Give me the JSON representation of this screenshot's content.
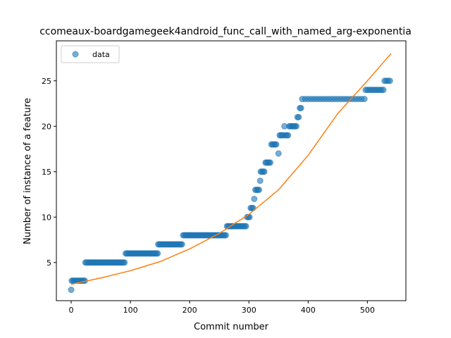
{
  "chart_data": {
    "type": "scatter",
    "title": "ccomeaux-boardgamegeek4android_func_call_with_named_arg-exponentia",
    "xlabel": "Commit number",
    "ylabel": "Number of instance of a feature",
    "xlim": [
      -25,
      565
    ],
    "ylim": [
      0.8,
      29.4
    ],
    "x_ticks": [
      0,
      100,
      200,
      300,
      400,
      500
    ],
    "y_ticks": [
      5,
      10,
      15,
      20,
      25
    ],
    "grid": false,
    "legend_position": "top-left",
    "series": [
      {
        "name": "data",
        "kind": "markers",
        "color": "#1f77b4",
        "points": [
          [
            0,
            2
          ],
          [
            1,
            3
          ],
          [
            3,
            3
          ],
          [
            5,
            3
          ],
          [
            7,
            3
          ],
          [
            9,
            3
          ],
          [
            11,
            3
          ],
          [
            13,
            3
          ],
          [
            15,
            3
          ],
          [
            17,
            3
          ],
          [
            19,
            3
          ],
          [
            21,
            3
          ],
          [
            23,
            3
          ],
          [
            24,
            5
          ],
          [
            26,
            5
          ],
          [
            28,
            5
          ],
          [
            30,
            5
          ],
          [
            32,
            5
          ],
          [
            34,
            5
          ],
          [
            36,
            5
          ],
          [
            38,
            5
          ],
          [
            40,
            5
          ],
          [
            42,
            5
          ],
          [
            44,
            5
          ],
          [
            46,
            5
          ],
          [
            48,
            5
          ],
          [
            50,
            5
          ],
          [
            52,
            5
          ],
          [
            54,
            5
          ],
          [
            56,
            5
          ],
          [
            58,
            5
          ],
          [
            60,
            5
          ],
          [
            62,
            5
          ],
          [
            64,
            5
          ],
          [
            66,
            5
          ],
          [
            68,
            5
          ],
          [
            70,
            5
          ],
          [
            72,
            5
          ],
          [
            74,
            5
          ],
          [
            76,
            5
          ],
          [
            78,
            5
          ],
          [
            80,
            5
          ],
          [
            82,
            5
          ],
          [
            84,
            5
          ],
          [
            86,
            5
          ],
          [
            88,
            5
          ],
          [
            90,
            5
          ],
          [
            92,
            6
          ],
          [
            94,
            6
          ],
          [
            96,
            6
          ],
          [
            98,
            6
          ],
          [
            100,
            6
          ],
          [
            102,
            6
          ],
          [
            104,
            6
          ],
          [
            106,
            6
          ],
          [
            108,
            6
          ],
          [
            110,
            6
          ],
          [
            112,
            6
          ],
          [
            114,
            6
          ],
          [
            116,
            6
          ],
          [
            118,
            6
          ],
          [
            120,
            6
          ],
          [
            122,
            6
          ],
          [
            124,
            6
          ],
          [
            126,
            6
          ],
          [
            128,
            6
          ],
          [
            130,
            6
          ],
          [
            132,
            6
          ],
          [
            134,
            6
          ],
          [
            136,
            6
          ],
          [
            138,
            6
          ],
          [
            140,
            6
          ],
          [
            142,
            6
          ],
          [
            144,
            6
          ],
          [
            146,
            6
          ],
          [
            147,
            7
          ],
          [
            149,
            7
          ],
          [
            151,
            7
          ],
          [
            153,
            7
          ],
          [
            155,
            7
          ],
          [
            157,
            7
          ],
          [
            159,
            7
          ],
          [
            161,
            7
          ],
          [
            163,
            7
          ],
          [
            165,
            7
          ],
          [
            167,
            7
          ],
          [
            169,
            7
          ],
          [
            171,
            7
          ],
          [
            173,
            7
          ],
          [
            175,
            7
          ],
          [
            177,
            7
          ],
          [
            179,
            7
          ],
          [
            181,
            7
          ],
          [
            183,
            7
          ],
          [
            185,
            7
          ],
          [
            187,
            7
          ],
          [
            189,
            8
          ],
          [
            191,
            8
          ],
          [
            193,
            8
          ],
          [
            195,
            8
          ],
          [
            197,
            8
          ],
          [
            199,
            8
          ],
          [
            201,
            8
          ],
          [
            203,
            8
          ],
          [
            205,
            8
          ],
          [
            207,
            8
          ],
          [
            209,
            8
          ],
          [
            211,
            8
          ],
          [
            213,
            8
          ],
          [
            215,
            8
          ],
          [
            217,
            8
          ],
          [
            219,
            8
          ],
          [
            221,
            8
          ],
          [
            223,
            8
          ],
          [
            225,
            8
          ],
          [
            227,
            8
          ],
          [
            229,
            8
          ],
          [
            231,
            8
          ],
          [
            233,
            8
          ],
          [
            235,
            8
          ],
          [
            237,
            8
          ],
          [
            239,
            8
          ],
          [
            241,
            8
          ],
          [
            243,
            8
          ],
          [
            245,
            8
          ],
          [
            247,
            8
          ],
          [
            249,
            8
          ],
          [
            251,
            8
          ],
          [
            253,
            8
          ],
          [
            255,
            8
          ],
          [
            257,
            8
          ],
          [
            259,
            8
          ],
          [
            261,
            8
          ],
          [
            263,
            9
          ],
          [
            265,
            9
          ],
          [
            267,
            9
          ],
          [
            269,
            9
          ],
          [
            271,
            9
          ],
          [
            273,
            9
          ],
          [
            275,
            9
          ],
          [
            277,
            9
          ],
          [
            279,
            9
          ],
          [
            281,
            9
          ],
          [
            283,
            9
          ],
          [
            285,
            9
          ],
          [
            287,
            9
          ],
          [
            289,
            9
          ],
          [
            291,
            9
          ],
          [
            293,
            9
          ],
          [
            295,
            9
          ],
          [
            297,
            10
          ],
          [
            299,
            10
          ],
          [
            301,
            10
          ],
          [
            303,
            11
          ],
          [
            305,
            11
          ],
          [
            307,
            11
          ],
          [
            309,
            12
          ],
          [
            311,
            13
          ],
          [
            313,
            13
          ],
          [
            315,
            13
          ],
          [
            317,
            13
          ],
          [
            319,
            14
          ],
          [
            320,
            15
          ],
          [
            322,
            15
          ],
          [
            324,
            15
          ],
          [
            326,
            15
          ],
          [
            328,
            16
          ],
          [
            330,
            16
          ],
          [
            332,
            16
          ],
          [
            334,
            16
          ],
          [
            336,
            16
          ],
          [
            338,
            18
          ],
          [
            340,
            18
          ],
          [
            342,
            18
          ],
          [
            344,
            18
          ],
          [
            346,
            18
          ],
          [
            350,
            17
          ],
          [
            352,
            19
          ],
          [
            354,
            19
          ],
          [
            356,
            19
          ],
          [
            358,
            19
          ],
          [
            360,
            20
          ],
          [
            362,
            19
          ],
          [
            364,
            19
          ],
          [
            366,
            19
          ],
          [
            368,
            20
          ],
          [
            370,
            20
          ],
          [
            372,
            20
          ],
          [
            374,
            20
          ],
          [
            376,
            20
          ],
          [
            378,
            20
          ],
          [
            380,
            20
          ],
          [
            382,
            21
          ],
          [
            384,
            21
          ],
          [
            386,
            22
          ],
          [
            388,
            22
          ],
          [
            390,
            23
          ],
          [
            395,
            23
          ],
          [
            400,
            23
          ],
          [
            405,
            23
          ],
          [
            410,
            23
          ],
          [
            415,
            23
          ],
          [
            420,
            23
          ],
          [
            425,
            23
          ],
          [
            430,
            23
          ],
          [
            435,
            23
          ],
          [
            440,
            23
          ],
          [
            445,
            23
          ],
          [
            450,
            23
          ],
          [
            455,
            23
          ],
          [
            460,
            23
          ],
          [
            465,
            23
          ],
          [
            470,
            23
          ],
          [
            475,
            23
          ],
          [
            480,
            23
          ],
          [
            485,
            23
          ],
          [
            490,
            23
          ],
          [
            495,
            23
          ],
          [
            497,
            24
          ],
          [
            500,
            24
          ],
          [
            503,
            24
          ],
          [
            506,
            24
          ],
          [
            509,
            24
          ],
          [
            512,
            24
          ],
          [
            515,
            24
          ],
          [
            518,
            24
          ],
          [
            521,
            24
          ],
          [
            524,
            24
          ],
          [
            527,
            24
          ],
          [
            529,
            25
          ],
          [
            532,
            25
          ],
          [
            535,
            25
          ],
          [
            538,
            25
          ]
        ]
      },
      {
        "name": "",
        "kind": "line",
        "color": "#ff7f0e",
        "points": [
          [
            0,
            2.6
          ],
          [
            50,
            3.3
          ],
          [
            100,
            4.1
          ],
          [
            150,
            5.1
          ],
          [
            200,
            6.5
          ],
          [
            250,
            8.2
          ],
          [
            300,
            10.3
          ],
          [
            350,
            13.0
          ],
          [
            400,
            16.8
          ],
          [
            450,
            21.4
          ],
          [
            500,
            25.0
          ],
          [
            540,
            28.0
          ]
        ]
      }
    ]
  }
}
